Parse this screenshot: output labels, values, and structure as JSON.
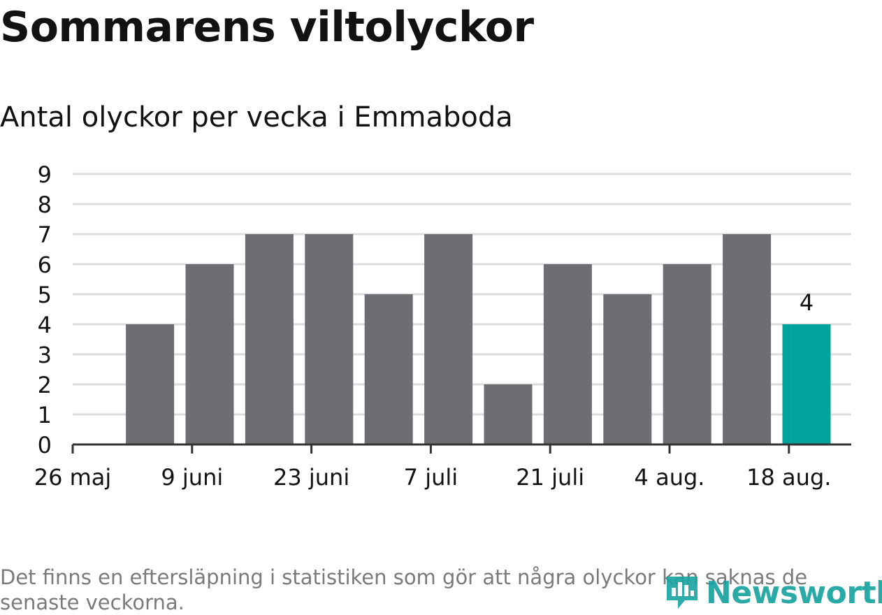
{
  "title": "Sommarens viltolyckor",
  "subtitle": "Antal olyckor per vecka i Emmaboda",
  "footnote": "Det finns en eftersläpning i statistiken som gör att några olyckor kan saknas de senaste veckorna.",
  "logo": {
    "text": "Newsworthy",
    "icon": "newsworthy-logo-icon"
  },
  "colors": {
    "bar": "#6e6d73",
    "highlight": "#00a39b",
    "grid": "#dcdcdc",
    "axis": "#333333",
    "text": "#121212"
  },
  "chart_data": {
    "type": "bar",
    "x": [
      "2019-06-03",
      "2019-06-10",
      "2019-06-17",
      "2019-06-24",
      "2019-07-01",
      "2019-07-08",
      "2019-07-15",
      "2019-07-22",
      "2019-07-29",
      "2019-08-05",
      "2019-08-12",
      "2019-08-19"
    ],
    "values": [
      4,
      6,
      7,
      7,
      5,
      7,
      2,
      6,
      5,
      6,
      7,
      4
    ],
    "highlight_last": true,
    "data_labels": [
      {
        "index": 11,
        "text": "4"
      }
    ],
    "y_ticks": [
      "0",
      "1",
      "2",
      "3",
      "4",
      "5",
      "6",
      "7",
      "8",
      "9"
    ],
    "ylim": [
      0,
      9
    ],
    "x_tick_labels": [
      "26 maj",
      "9 juni",
      "23 juni",
      "7 juli",
      "21 juli",
      "4 aug.",
      "18 aug."
    ],
    "xlim": [
      "2019-05-26",
      "2019-08-23"
    ],
    "grid": true,
    "legend": "none"
  }
}
